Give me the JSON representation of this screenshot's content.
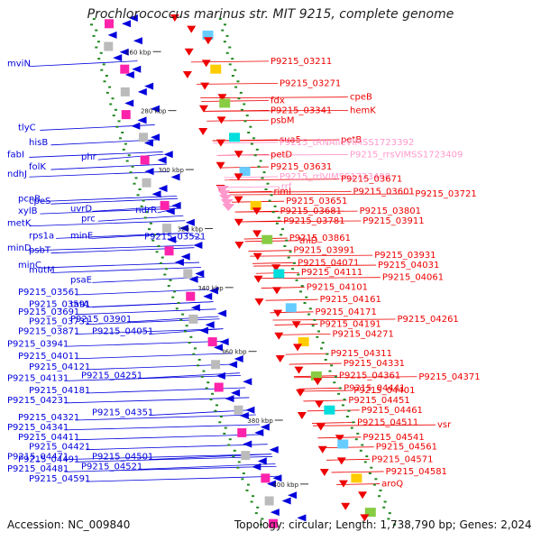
{
  "title": "Prochlorococcus marinus str. MIT 9215, complete genome",
  "footer": {
    "accession": "Accession: NC_009840",
    "summary": "Topology: circular; Length: 1,738,790 bp; Genes: 2,024"
  },
  "colors": {
    "left_strand": "#0000dd",
    "right_strand": "#ee0000",
    "rna": "#ff99cc",
    "backbone": "#999999"
  },
  "ticks": [
    {
      "label": "260 kbp",
      "pos": 0.05
    },
    {
      "label": "280 kbp",
      "pos": 0.17
    },
    {
      "label": "300 kbp",
      "pos": 0.29
    },
    {
      "label": "320 kbp",
      "pos": 0.41
    },
    {
      "label": "340 kbp",
      "pos": 0.53
    },
    {
      "label": "360 kbp",
      "pos": 0.66
    },
    {
      "label": "380 kbp",
      "pos": 0.8
    },
    {
      "label": "400 kbp",
      "pos": 0.93
    }
  ],
  "left_labels": [
    {
      "t": "mviN",
      "pos": 0.08
    },
    {
      "t": "tlyC",
      "pos": 0.21
    },
    {
      "t": "hisB",
      "pos": 0.24
    },
    {
      "t": "fabI",
      "pos": 0.265
    },
    {
      "t": "phr",
      "pos": 0.27
    },
    {
      "t": "folK",
      "pos": 0.29
    },
    {
      "t": "ndhJ",
      "pos": 0.305
    },
    {
      "t": "pcnB",
      "pos": 0.355
    },
    {
      "t": "cpeS",
      "pos": 0.36
    },
    {
      "t": "uvrD",
      "pos": 0.375
    },
    {
      "t": "xylB",
      "pos": 0.38
    },
    {
      "t": "ndrR",
      "pos": 0.378
    },
    {
      "t": "metK",
      "pos": 0.405
    },
    {
      "t": "prc",
      "pos": 0.395
    },
    {
      "t": "rps1a",
      "pos": 0.43
    },
    {
      "t": "minE",
      "pos": 0.43
    },
    {
      "t": "P9215_03521",
      "pos": 0.432
    },
    {
      "t": "psbT",
      "pos": 0.46
    },
    {
      "t": "minD",
      "pos": 0.455
    },
    {
      "t": "minC",
      "pos": 0.49
    },
    {
      "t": "mutM",
      "pos": 0.5
    },
    {
      "t": "psaE",
      "pos": 0.52
    },
    {
      "t": "P9215_03561",
      "pos": 0.545
    },
    {
      "t": "P9215_03591",
      "pos": 0.57
    },
    {
      "t": "tatA",
      "pos": 0.57
    },
    {
      "t": "P9215_03691",
      "pos": 0.585
    },
    {
      "t": "P9215_03731",
      "pos": 0.605
    },
    {
      "t": "P9215_03901",
      "pos": 0.6
    },
    {
      "t": "P9215_03871",
      "pos": 0.625
    },
    {
      "t": "P9215_04051",
      "pos": 0.625
    },
    {
      "t": "P9215_03941",
      "pos": 0.65
    },
    {
      "t": "P9215_04011",
      "pos": 0.675
    },
    {
      "t": "P9215_04121",
      "pos": 0.697
    },
    {
      "t": "P9215_04131",
      "pos": 0.72
    },
    {
      "t": "P9215_04251",
      "pos": 0.715
    },
    {
      "t": "P9215_04181",
      "pos": 0.745
    },
    {
      "t": "P9215_04231",
      "pos": 0.765
    },
    {
      "t": "P9215_04321",
      "pos": 0.8
    },
    {
      "t": "P9215_04351",
      "pos": 0.79
    },
    {
      "t": "P9215_04341",
      "pos": 0.82
    },
    {
      "t": "P9215_04411",
      "pos": 0.84
    },
    {
      "t": "P9215_04421",
      "pos": 0.86
    },
    {
      "t": "P9215_04471",
      "pos": 0.88
    },
    {
      "t": "P9215_04491",
      "pos": 0.885
    },
    {
      "t": "P9215_04501",
      "pos": 0.88
    },
    {
      "t": "P9215_04481",
      "pos": 0.905
    },
    {
      "t": "P9215_04521",
      "pos": 0.9
    },
    {
      "t": "P9215_04591",
      "pos": 0.925
    }
  ],
  "right_labels": [
    {
      "t": "P9215_03211",
      "pos": 0.075,
      "c": "r"
    },
    {
      "t": "P9215_03271",
      "pos": 0.12,
      "c": "r"
    },
    {
      "t": "fdx",
      "pos": 0.155,
      "c": "r"
    },
    {
      "t": "cpeB",
      "pos": 0.148,
      "c": "r"
    },
    {
      "t": "P9215_03341",
      "pos": 0.175,
      "c": "r"
    },
    {
      "t": "hemK",
      "pos": 0.175,
      "c": "r"
    },
    {
      "t": "psbM",
      "pos": 0.195,
      "c": "r"
    },
    {
      "t": "sua5",
      "pos": 0.235,
      "c": "r"
    },
    {
      "t": "petB",
      "pos": 0.235,
      "c": "r"
    },
    {
      "t": "P9215_tRNAIleVIMSS1723392",
      "pos": 0.24,
      "c": "p"
    },
    {
      "t": "petD",
      "pos": 0.265,
      "c": "r"
    },
    {
      "t": "P9215_rrsVIMSS1723409",
      "pos": 0.265,
      "c": "p"
    },
    {
      "t": "P9215_03631",
      "pos": 0.29,
      "c": "r"
    },
    {
      "t": "P9215_rrlVIMSS1723408",
      "pos": 0.31,
      "c": "p"
    },
    {
      "t": "P9215_03671",
      "pos": 0.315,
      "c": "r"
    },
    {
      "t": "rrf",
      "pos": 0.33,
      "c": "p"
    },
    {
      "t": "rimI",
      "pos": 0.34,
      "c": "r"
    },
    {
      "t": "P9215_03601",
      "pos": 0.34,
      "c": "r"
    },
    {
      "t": "P9215_03721",
      "pos": 0.345,
      "c": "r"
    },
    {
      "t": "P9215_03651",
      "pos": 0.36,
      "c": "r"
    },
    {
      "t": "P9215_03681",
      "pos": 0.38,
      "c": "r"
    },
    {
      "t": "P9215_03801",
      "pos": 0.38,
      "c": "r"
    },
    {
      "t": "P9215_03781",
      "pos": 0.4,
      "c": "r"
    },
    {
      "t": "P9215_03911",
      "pos": 0.4,
      "c": "r"
    },
    {
      "t": "P9215_03861",
      "pos": 0.435,
      "c": "r"
    },
    {
      "t": "thiD",
      "pos": 0.44,
      "c": "r"
    },
    {
      "t": "P9215_03991",
      "pos": 0.46,
      "c": "r"
    },
    {
      "t": "P9215_03931",
      "pos": 0.47,
      "c": "r"
    },
    {
      "t": "P9215_04071",
      "pos": 0.485,
      "c": "r"
    },
    {
      "t": "P9215_04031",
      "pos": 0.49,
      "c": "r"
    },
    {
      "t": "P9215_04111",
      "pos": 0.505,
      "c": "r"
    },
    {
      "t": "P9215_04061",
      "pos": 0.515,
      "c": "r"
    },
    {
      "t": "P9215_04101",
      "pos": 0.535,
      "c": "r"
    },
    {
      "t": "P9215_04161",
      "pos": 0.56,
      "c": "r"
    },
    {
      "t": "P9215_04171",
      "pos": 0.585,
      "c": "r"
    },
    {
      "t": "P9215_04261",
      "pos": 0.6,
      "c": "r"
    },
    {
      "t": "P9215_04191",
      "pos": 0.61,
      "c": "r"
    },
    {
      "t": "P9215_04271",
      "pos": 0.63,
      "c": "r"
    },
    {
      "t": "P9215_04311",
      "pos": 0.67,
      "c": "r"
    },
    {
      "t": "P9215_04331",
      "pos": 0.69,
      "c": "r"
    },
    {
      "t": "P9215_04361",
      "pos": 0.715,
      "c": "r"
    },
    {
      "t": "P9215_04371",
      "pos": 0.717,
      "c": "r"
    },
    {
      "t": "P9215_04441",
      "pos": 0.74,
      "c": "r"
    },
    {
      "t": "P9215_04401",
      "pos": 0.745,
      "c": "r"
    },
    {
      "t": "P9215_04451",
      "pos": 0.765,
      "c": "r"
    },
    {
      "t": "P9215_04461",
      "pos": 0.785,
      "c": "r"
    },
    {
      "t": "P9215_04511",
      "pos": 0.81,
      "c": "r"
    },
    {
      "t": "vsr",
      "pos": 0.815,
      "c": "r"
    },
    {
      "t": "P9215_04541",
      "pos": 0.84,
      "c": "r"
    },
    {
      "t": "P9215_04561",
      "pos": 0.86,
      "c": "r"
    },
    {
      "t": "P9215_04571",
      "pos": 0.885,
      "c": "r"
    },
    {
      "t": "P9215_04581",
      "pos": 0.91,
      "c": "r"
    },
    {
      "t": "aroQ",
      "pos": 0.935,
      "c": "r"
    }
  ]
}
